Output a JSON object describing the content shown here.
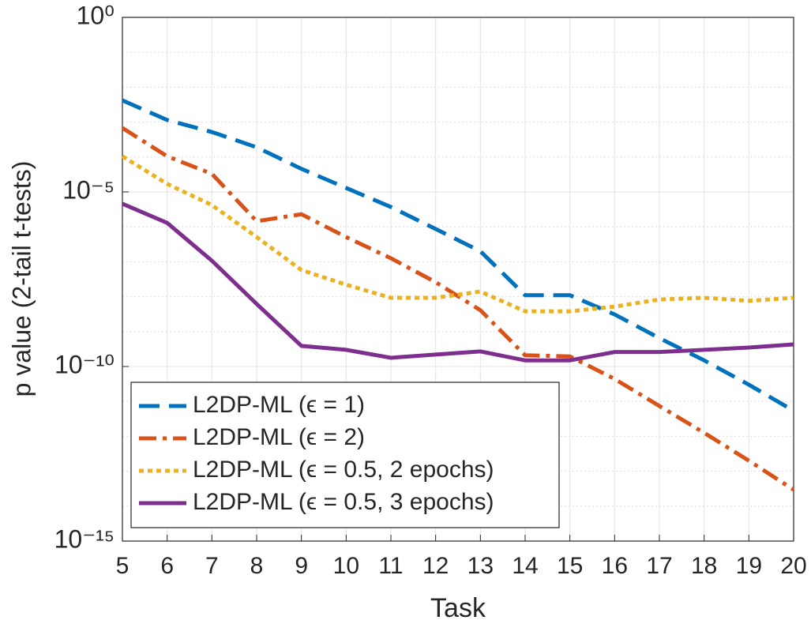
{
  "chart_data": {
    "type": "line",
    "xlabel": "Task",
    "ylabel": "p value (2-tail t-tests)",
    "x": [
      5,
      6,
      7,
      8,
      9,
      10,
      11,
      12,
      13,
      14,
      15,
      16,
      17,
      18,
      19,
      20
    ],
    "xlim": [
      5,
      20
    ],
    "xticks": [
      5,
      6,
      7,
      8,
      9,
      10,
      11,
      12,
      13,
      14,
      15,
      16,
      17,
      18,
      19,
      20
    ],
    "ylim": [
      1e-15,
      1
    ],
    "yscale": "log",
    "yticks": [
      {
        "value": 1e-15,
        "label": "10⁻¹⁵"
      },
      {
        "value": 1e-10,
        "label": "10⁻¹⁰"
      },
      {
        "value": 1e-05,
        "label": "10⁻⁵"
      },
      {
        "value": 1,
        "label": "10⁰"
      }
    ],
    "grid": true,
    "minor_grid": true,
    "legend_loc": "southwest",
    "series": [
      {
        "name": "L2DP-ML (ϵ = 1)",
        "color": "#0072BD",
        "style": "dashed",
        "values": [
          0.0042,
          0.00115,
          0.00052,
          0.00019,
          4.6e-05,
          1.3e-05,
          3.7e-06,
          8.7e-07,
          2e-07,
          1.1e-08,
          1.1e-08,
          3.1e-09,
          6.5e-10,
          1.5e-10,
          3e-11,
          5.4e-12
        ]
      },
      {
        "name": "L2DP-ML (ϵ = 2)",
        "color": "#D95319",
        "style": "dashdot",
        "values": [
          0.00068,
          0.000105,
          3.3e-05,
          1.45e-06,
          2.3e-06,
          5.1e-07,
          1.26e-07,
          2.6e-08,
          4.1e-09,
          2.1e-10,
          1.95e-10,
          4.4e-11,
          7.4e-12,
          1.26e-12,
          2e-13,
          2.95e-14
        ]
      },
      {
        "name": "L2DP-ML (ϵ = 0.5, 2 epochs)",
        "color": "#EDB120",
        "style": "dotted",
        "values": [
          0.000105,
          1.7e-05,
          4.2e-06,
          5.1e-07,
          5.8e-08,
          2.2e-08,
          9.3e-09,
          9.3e-09,
          1.4e-08,
          3.8e-09,
          3.8e-09,
          5.2e-09,
          8.3e-09,
          9.3e-09,
          7.6e-09,
          9.3e-09
        ]
      },
      {
        "name": "L2DP-ML (ϵ = 0.5, 3 epochs)",
        "color": "#7E2F8E",
        "style": "solid",
        "values": [
          4.6e-06,
          1.3e-06,
          1.07e-07,
          6.2e-09,
          3.9e-10,
          3e-10,
          1.78e-10,
          2.2e-10,
          2.7e-10,
          1.5e-10,
          1.5e-10,
          2.6e-10,
          2.6e-10,
          3e-10,
          3.5e-10,
          4.3e-10
        ]
      }
    ]
  }
}
